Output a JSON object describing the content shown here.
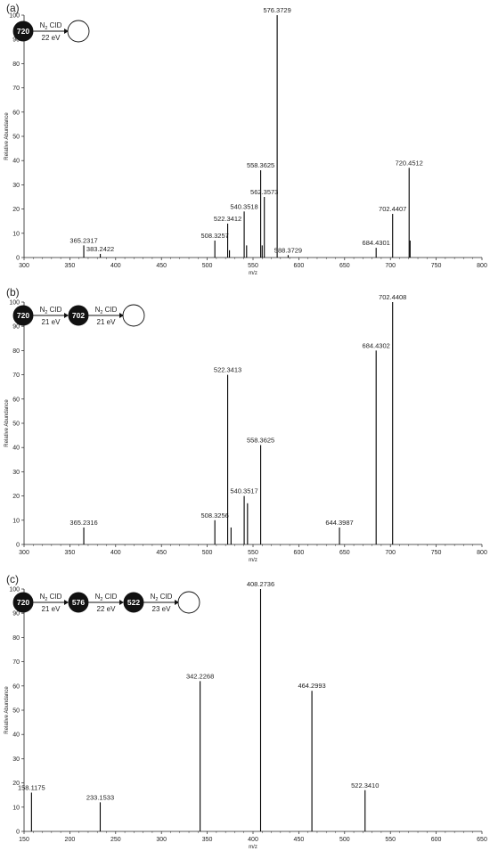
{
  "chart_data": [
    {
      "type": "bar",
      "panel": "(a)",
      "xlabel": "m/z",
      "ylabel": "Relative Abundance",
      "xlim": [
        300,
        800
      ],
      "ylim": [
        0,
        100
      ],
      "xticks": [
        300,
        350,
        400,
        450,
        500,
        550,
        600,
        650,
        700,
        750,
        800
      ],
      "yticks": [
        0,
        10,
        20,
        30,
        40,
        50,
        60,
        70,
        80,
        90,
        100
      ],
      "scheme": {
        "nodes": [
          "720",
          ""
        ],
        "steps": [
          {
            "gas": "N",
            "sub": "2",
            "label": "CID",
            "energy": "22 eV"
          }
        ]
      },
      "peaks": [
        {
          "x": 365.2317,
          "y": 5,
          "label": "365.2317"
        },
        {
          "x": 383.2422,
          "y": 1.5,
          "label": "383.2422"
        },
        {
          "x": 508.3257,
          "y": 7,
          "label": "508.3257"
        },
        {
          "x": 522.3412,
          "y": 14,
          "label": "522.3412"
        },
        {
          "x": 524.3,
          "y": 3,
          "label": ""
        },
        {
          "x": 540.3518,
          "y": 19,
          "label": "540.3518"
        },
        {
          "x": 543.0,
          "y": 5,
          "label": ""
        },
        {
          "x": 558.3625,
          "y": 36,
          "label": "558.3625"
        },
        {
          "x": 560.0,
          "y": 5,
          "label": ""
        },
        {
          "x": 562.3573,
          "y": 25,
          "label": "562.3573"
        },
        {
          "x": 576.3729,
          "y": 100,
          "label": "576.3729"
        },
        {
          "x": 588.3729,
          "y": 1,
          "label": "588.3729"
        },
        {
          "x": 684.4301,
          "y": 4,
          "label": "684.4301"
        },
        {
          "x": 702.4407,
          "y": 18,
          "label": "702.4407"
        },
        {
          "x": 720.4512,
          "y": 37,
          "label": "720.4512"
        },
        {
          "x": 721.5,
          "y": 7,
          "label": ""
        }
      ]
    },
    {
      "type": "bar",
      "panel": "(b)",
      "xlabel": "m/z",
      "ylabel": "Relative Abundance",
      "xlim": [
        300,
        800
      ],
      "ylim": [
        0,
        100
      ],
      "xticks": [
        300,
        350,
        400,
        450,
        500,
        550,
        600,
        650,
        700,
        750,
        800
      ],
      "yticks": [
        0,
        10,
        20,
        30,
        40,
        50,
        60,
        70,
        80,
        90,
        100
      ],
      "scheme": {
        "nodes": [
          "720",
          "702",
          ""
        ],
        "steps": [
          {
            "gas": "N",
            "sub": "2",
            "label": "CID",
            "energy": "21 eV"
          },
          {
            "gas": "N",
            "sub": "2",
            "label": "CID",
            "energy": "21 eV"
          }
        ]
      },
      "peaks": [
        {
          "x": 365.2316,
          "y": 7,
          "label": "365.2316"
        },
        {
          "x": 508.3256,
          "y": 10,
          "label": "508.3256"
        },
        {
          "x": 522.3413,
          "y": 70,
          "label": "522.3413"
        },
        {
          "x": 526.0,
          "y": 7,
          "label": ""
        },
        {
          "x": 540.3517,
          "y": 20,
          "label": "540.3517"
        },
        {
          "x": 544.0,
          "y": 17,
          "label": ""
        },
        {
          "x": 558.3625,
          "y": 41,
          "label": "558.3625"
        },
        {
          "x": 644.3987,
          "y": 7,
          "label": "644.3987"
        },
        {
          "x": 684.4302,
          "y": 80,
          "label": "684.4302"
        },
        {
          "x": 702.4408,
          "y": 100,
          "label": "702.4408"
        }
      ]
    },
    {
      "type": "bar",
      "panel": "(c)",
      "xlabel": "m/z",
      "ylabel": "Relative Abundance",
      "xlim": [
        150,
        650
      ],
      "ylim": [
        0,
        100
      ],
      "xticks": [
        150,
        200,
        250,
        300,
        350,
        400,
        450,
        500,
        550,
        600,
        650
      ],
      "yticks": [
        0,
        10,
        20,
        30,
        40,
        50,
        60,
        70,
        80,
        90,
        100
      ],
      "scheme": {
        "nodes": [
          "720",
          "576",
          "522",
          ""
        ],
        "steps": [
          {
            "gas": "N",
            "sub": "2",
            "label": "CID",
            "energy": "21 eV"
          },
          {
            "gas": "N",
            "sub": "2",
            "label": "CID",
            "energy": "22 eV"
          },
          {
            "gas": "N",
            "sub": "2",
            "label": "CID",
            "energy": "23 eV"
          }
        ]
      },
      "peaks": [
        {
          "x": 158.1175,
          "y": 16,
          "label": "158.1175"
        },
        {
          "x": 233.1533,
          "y": 12,
          "label": "233.1533"
        },
        {
          "x": 342.2268,
          "y": 62,
          "label": "342.2268"
        },
        {
          "x": 408.2736,
          "y": 100,
          "label": "408.2736"
        },
        {
          "x": 464.2993,
          "y": 58,
          "label": "464.2993"
        },
        {
          "x": 522.341,
          "y": 17,
          "label": "522.3410"
        }
      ]
    }
  ]
}
